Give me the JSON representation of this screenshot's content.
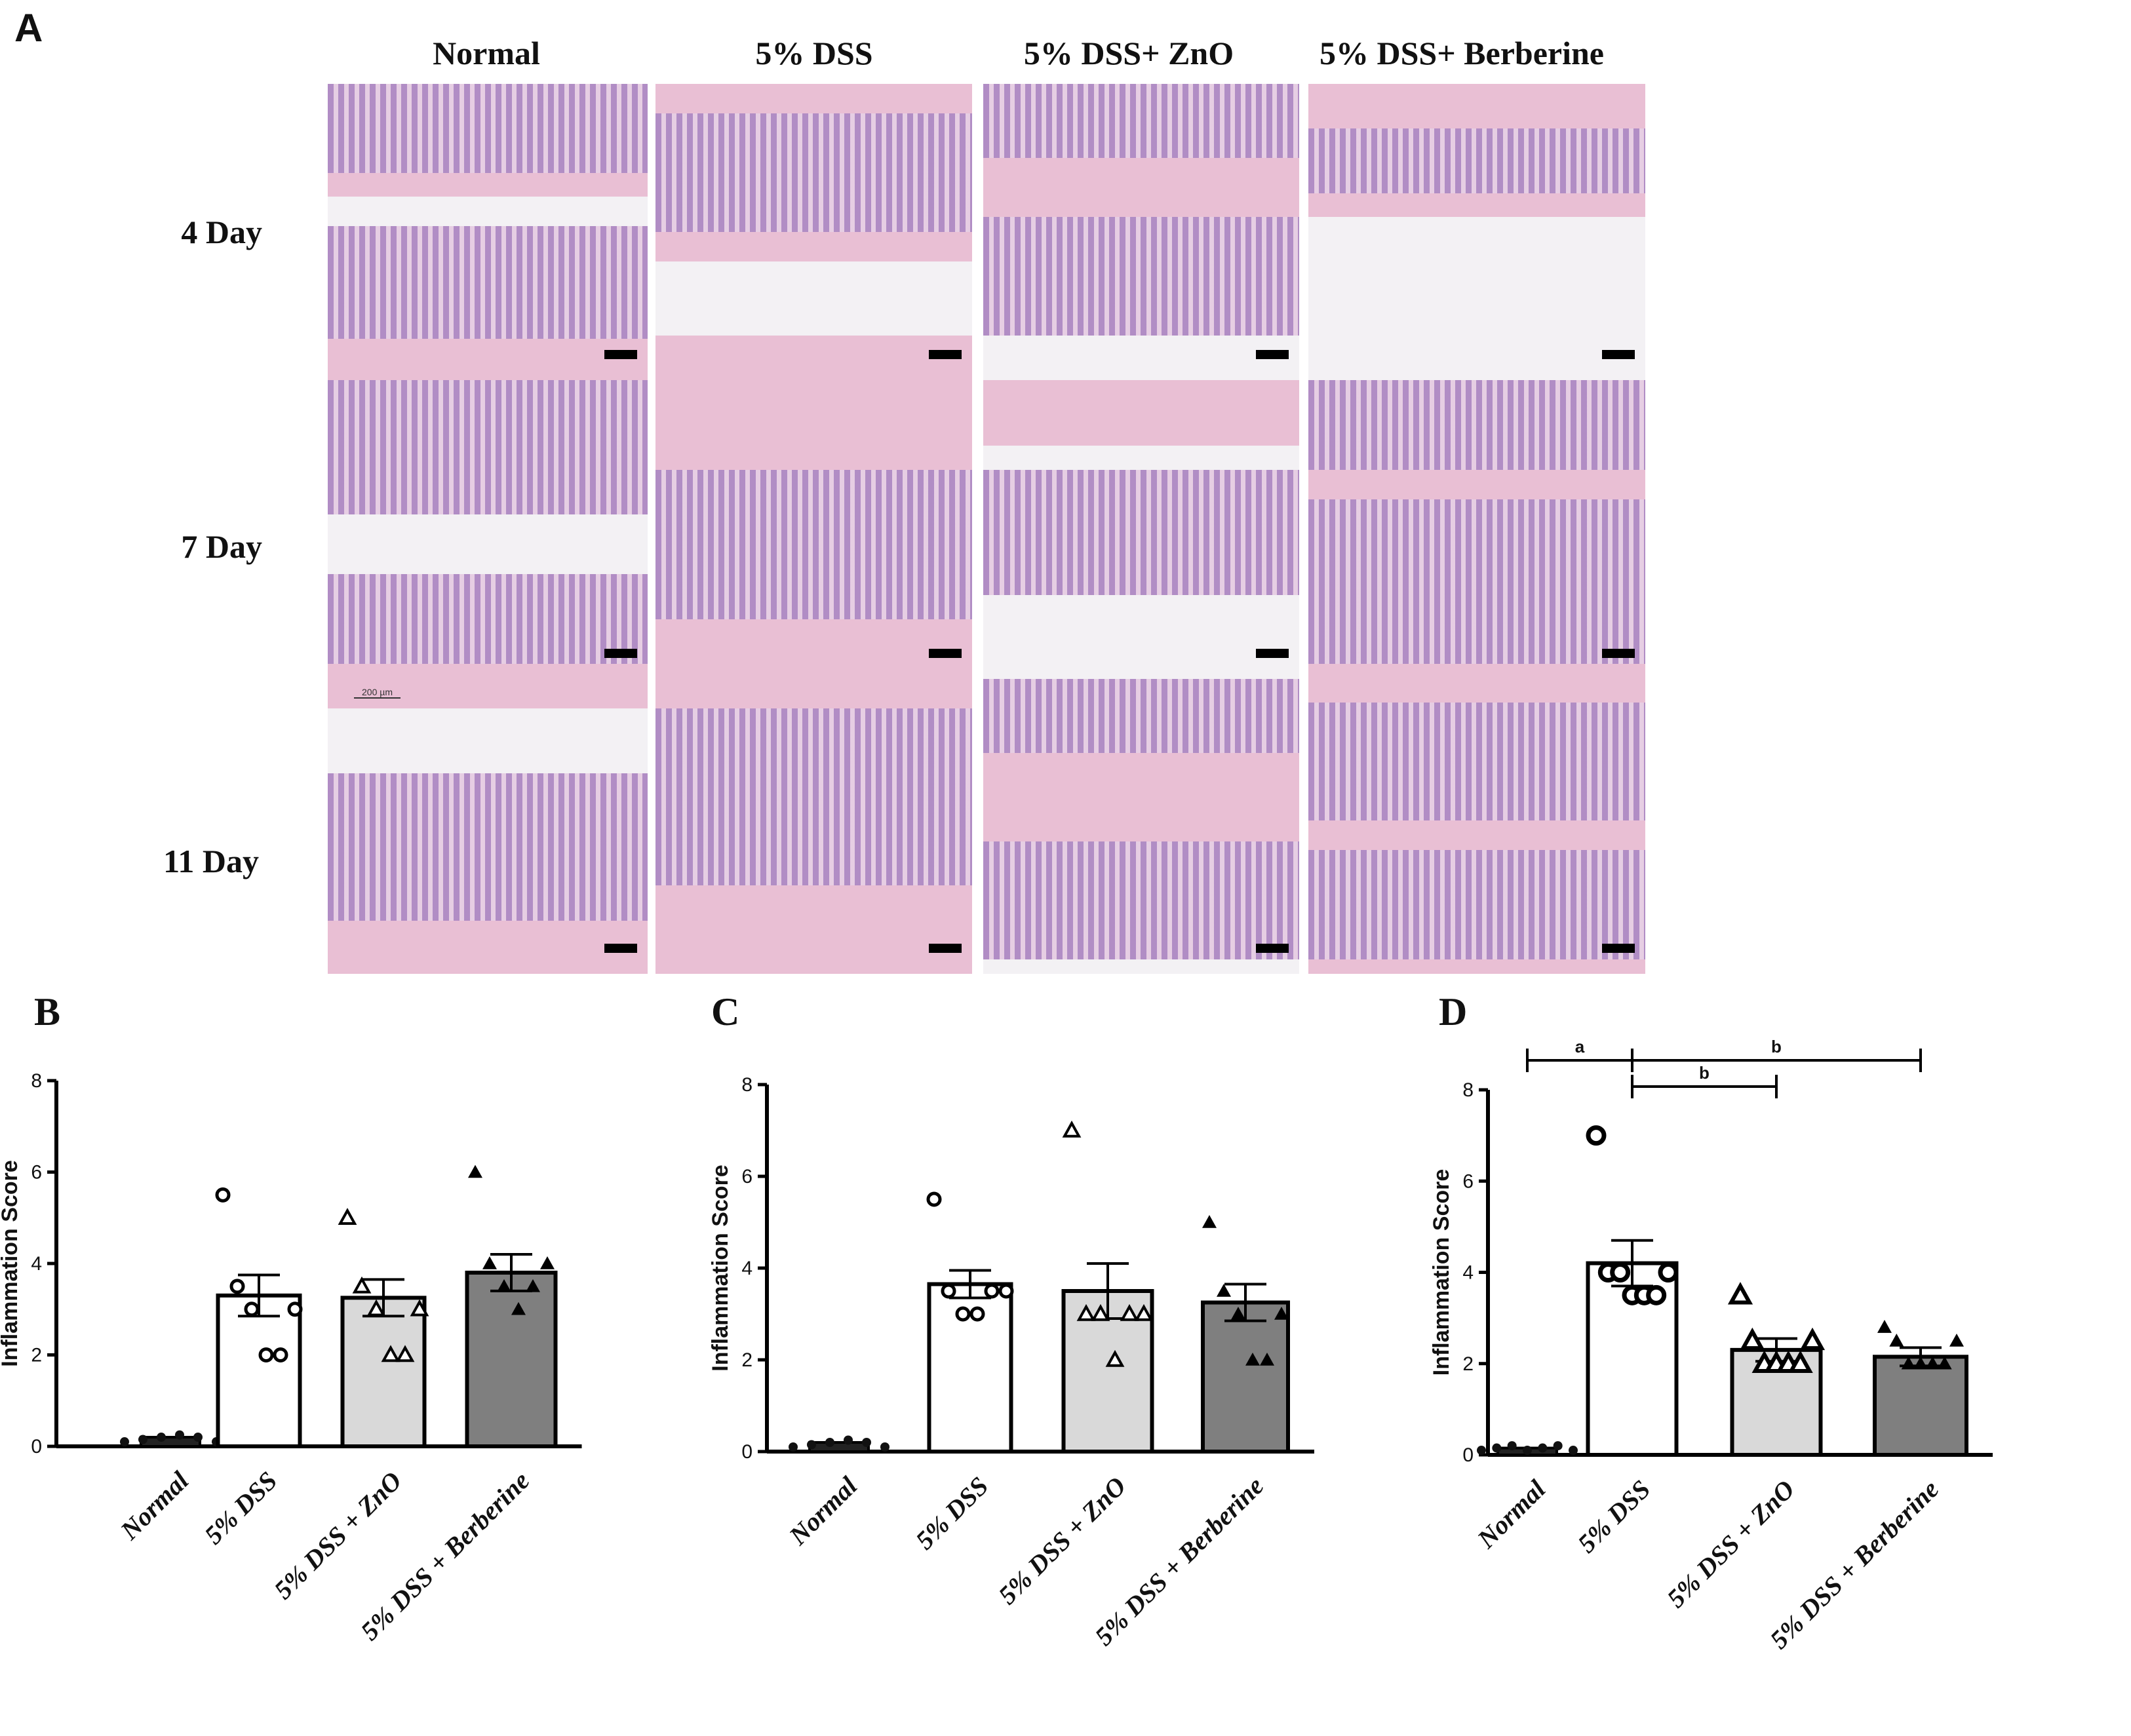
{
  "panel_labels": {
    "a": "A",
    "b": "B",
    "c": "C",
    "d": "D"
  },
  "histology": {
    "columns": [
      "Normal",
      "5% DSS",
      "5% DSS+ ZnO",
      "5% DSS+ Berberine"
    ],
    "rows": [
      "4 Day",
      "7 Day",
      "11 Day"
    ],
    "scale_label": "200 µm",
    "colors": {
      "stain_pink": "#e9bfd4",
      "crypt_purple": "#a784c2",
      "lumen": "#f3f1f4"
    }
  },
  "chart_data": [
    {
      "type": "bar",
      "panel": "B",
      "ylabel": "Inflammation Score",
      "ylim": [
        0,
        8
      ],
      "yticks": [
        "0",
        "2",
        "4",
        "6",
        "8"
      ],
      "categories": [
        "Normal",
        "5% DSS",
        "5% DSS + ZnO",
        "5% DSS + Berberine"
      ],
      "values": [
        0.2,
        3.3,
        3.25,
        3.8
      ],
      "sem": [
        0.05,
        0.45,
        0.4,
        0.4
      ],
      "points": [
        [
          0.1,
          0.15,
          0.2,
          0.25,
          0.2,
          0.1
        ],
        [
          5.5,
          3.5,
          3.0,
          2.0,
          2.0,
          3.0
        ],
        [
          5.0,
          3.5,
          3.0,
          2.0,
          2.0,
          3.0
        ],
        [
          6.0,
          4.0,
          3.5,
          3.0,
          3.5,
          4.0
        ]
      ],
      "markers": [
        "dot",
        "circle",
        "triangle-open",
        "triangle"
      ],
      "bar_colors": [
        "#222222",
        "#ffffff",
        "#d9d9d9",
        "#7f7f7f"
      ]
    },
    {
      "type": "bar",
      "panel": "C",
      "ylabel": "Inflammation Score",
      "ylim": [
        0,
        8
      ],
      "yticks": [
        "0",
        "2",
        "4",
        "6",
        "8"
      ],
      "categories": [
        "Normal",
        "5% DSS",
        "5% DSS + ZnO",
        "5% DSS + Berberine"
      ],
      "values": [
        0.2,
        3.65,
        3.5,
        3.25
      ],
      "sem": [
        0.05,
        0.3,
        0.6,
        0.4
      ],
      "points": [
        [
          0.1,
          0.15,
          0.2,
          0.25,
          0.2,
          0.1
        ],
        [
          5.5,
          3.5,
          3.0,
          3.0,
          3.5,
          3.5
        ],
        [
          7.0,
          3.0,
          3.0,
          2.0,
          3.0,
          3.0
        ],
        [
          5.0,
          3.5,
          3.0,
          2.0,
          2.0,
          3.0
        ]
      ],
      "markers": [
        "dot",
        "circle",
        "triangle-open",
        "triangle"
      ],
      "bar_colors": [
        "#222222",
        "#ffffff",
        "#d9d9d9",
        "#7f7f7f"
      ]
    },
    {
      "type": "bar",
      "panel": "D",
      "ylabel": "Inflammation Score",
      "ylim": [
        0,
        8
      ],
      "yticks": [
        "0",
        "2",
        "4",
        "6",
        "8"
      ],
      "categories": [
        "Normal",
        "5% DSS",
        "5% DSS + ZnO",
        "5% DSS + Berberine"
      ],
      "values": [
        0.15,
        4.2,
        2.3,
        2.15
      ],
      "sem": [
        0.05,
        0.5,
        0.25,
        0.2
      ],
      "points": [
        [
          0.1,
          0.15,
          0.2,
          0.1,
          0.15,
          0.2,
          0.1
        ],
        [
          7.0,
          4.0,
          4.0,
          3.5,
          3.5,
          3.5,
          4.0
        ],
        [
          3.5,
          2.5,
          2.0,
          2.0,
          2.0,
          2.0,
          2.5
        ],
        [
          2.8,
          2.5,
          2.0,
          2.0,
          2.0,
          2.0,
          2.5
        ]
      ],
      "markers": [
        "dot",
        "circle-bold",
        "triangle-open-bold",
        "triangle"
      ],
      "bar_colors": [
        "#222222",
        "#ffffff",
        "#d9d9d9",
        "#7f7f7f"
      ],
      "significance": [
        {
          "from": 0,
          "to": 1,
          "label": "a",
          "level": 2
        },
        {
          "from": 1,
          "to": 3,
          "label": "b",
          "level": 2
        },
        {
          "from": 1,
          "to": 2,
          "label": "b",
          "level": 1
        }
      ]
    }
  ]
}
